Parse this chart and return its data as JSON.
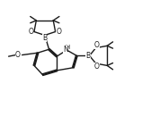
{
  "bg_color": "#ffffff",
  "line_color": "#1a1a1a",
  "lw": 1.0,
  "figsize": [
    1.58,
    1.31
  ],
  "dpi": 100,
  "xlim": [
    0,
    10
  ],
  "ylim": [
    0,
    8.3
  ]
}
